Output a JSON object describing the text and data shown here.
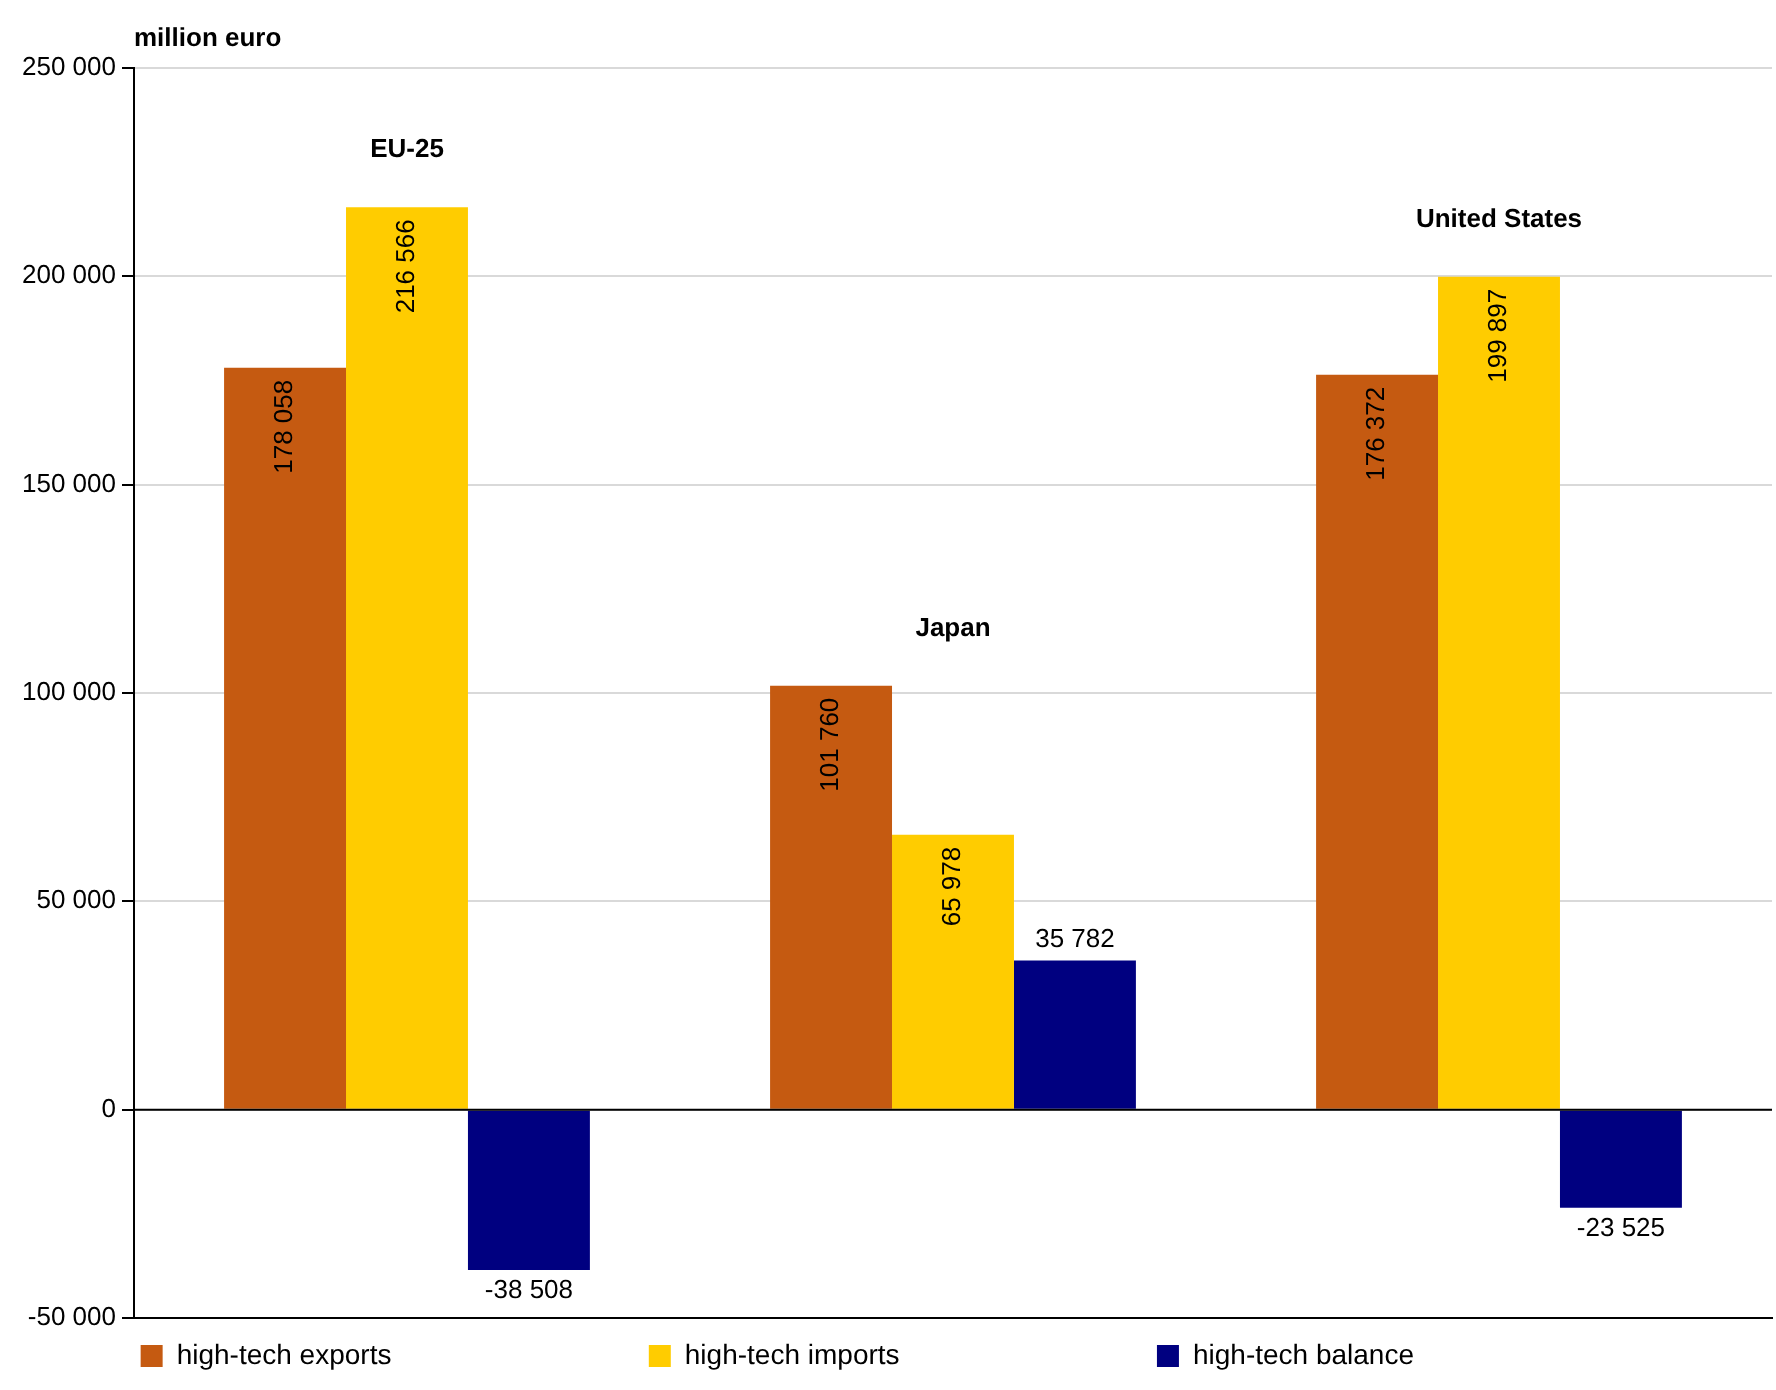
{
  "chart_data": {
    "type": "bar",
    "ylabel": "million euro",
    "categories": [
      "EU-25",
      "Japan",
      "United States"
    ],
    "series": [
      {
        "name": "high-tech exports",
        "color": "#c55a11",
        "values": [
          178058,
          101760,
          176372
        ],
        "value_labels": [
          "178 058",
          "101 760",
          "176 372"
        ]
      },
      {
        "name": "high-tech imports",
        "color": "#ffcc00",
        "values": [
          216566,
          65978,
          199897
        ],
        "value_labels": [
          "216 566",
          "65 978",
          "199 897"
        ]
      },
      {
        "name": "high-tech balance",
        "color": "#000080",
        "values": [
          -38508,
          35782,
          -23525
        ],
        "value_labels": [
          "-38 508",
          "35 782",
          "-23 525"
        ]
      }
    ],
    "ylim": [
      -50000,
      250000
    ],
    "yticks": [
      {
        "value": -50000,
        "label": "-50 000"
      },
      {
        "value": 0,
        "label": "0"
      },
      {
        "value": 50000,
        "label": "50 000"
      },
      {
        "value": 100000,
        "label": "100 000"
      },
      {
        "value": 150000,
        "label": "150 000"
      },
      {
        "value": 200000,
        "label": "200 000"
      },
      {
        "value": 250000,
        "label": "250 000"
      }
    ],
    "grid": "y",
    "legend": "bottom"
  }
}
